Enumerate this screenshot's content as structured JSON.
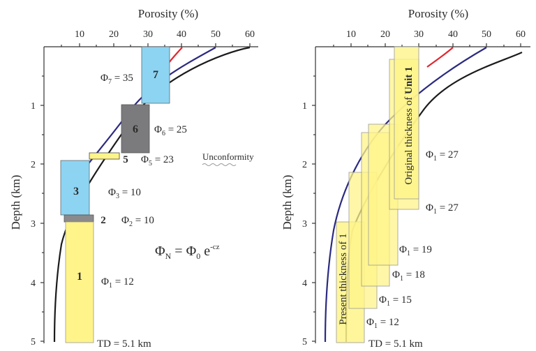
{
  "left_panel": {
    "x_axis_title": "Porosity (%)",
    "y_axis_title": "Depth (km)",
    "x_ticks": [
      "10",
      "20",
      "30",
      "40",
      "50",
      "60"
    ],
    "y_ticks": [
      "1",
      "2",
      "3",
      "4",
      "5"
    ],
    "units": [
      {
        "number": "7",
        "label_sym": "Φ",
        "label_sub": "7",
        "label_val": " = 35",
        "color": "#8dd4f2"
      },
      {
        "number": "6",
        "label_sym": "Φ",
        "label_sub": "6",
        "label_val": " = 25",
        "color": "#7b7b7d"
      },
      {
        "number": "5",
        "label_sym": "Φ",
        "label_sub": "5",
        "label_val": " = 23",
        "color": "#fff48a"
      },
      {
        "number": "3",
        "label_sym": "Φ",
        "label_sub": "3",
        "label_val": " = 10",
        "color": "#8dd4f2"
      },
      {
        "number": "2",
        "label_sym": "Φ",
        "label_sub": "2",
        "label_val": " = 10",
        "color": "#8a8a8c"
      },
      {
        "number": "1",
        "label_sym": "Φ",
        "label_sub": "1",
        "label_val": " = 12",
        "color": "#fff48a"
      }
    ],
    "unconformity_label": "Unconformity",
    "equation": {
      "lhs": "Φ",
      "lhs_sub": "N",
      "eq": " = ",
      "rhs": "Φ",
      "rhs_sub": "0",
      "e": " e",
      "exp": "-cz"
    },
    "td_label": "TD = 5.1 km"
  },
  "right_panel": {
    "x_axis_title": "Porosity (%)",
    "y_axis_title": "Depth (km)",
    "x_ticks": [
      "10",
      "20",
      "30",
      "40",
      "50",
      "60"
    ],
    "y_ticks": [
      "1",
      "2",
      "3",
      "4",
      "5"
    ],
    "labels": [
      {
        "sym": "Φ",
        "sub": "1",
        "val": " = 27"
      },
      {
        "sym": "Φ",
        "sub": "1",
        "val": " = 27"
      },
      {
        "sym": "Φ",
        "sub": "1",
        "val": " = 19"
      },
      {
        "sym": "Φ",
        "sub": "1",
        "val": " = 18"
      },
      {
        "sym": "Φ",
        "sub": "1",
        "val": " = 15"
      },
      {
        "sym": "Φ",
        "sub": "1",
        "val": " = 12"
      }
    ],
    "original_thickness_pre": "Original thickness of ",
    "original_thickness_bold": "Unit 1",
    "present_thickness": "Present thickness of 1",
    "td_label": "TD = 5.1 km"
  },
  "colors": {
    "blue_box": "#8dd4f2",
    "gray_box": "#7b7b7d",
    "yellow_box": "#fff48a",
    "curve_black": "#1b1b1b",
    "curve_blue": "#2b2a80",
    "curve_red": "#e02830"
  }
}
